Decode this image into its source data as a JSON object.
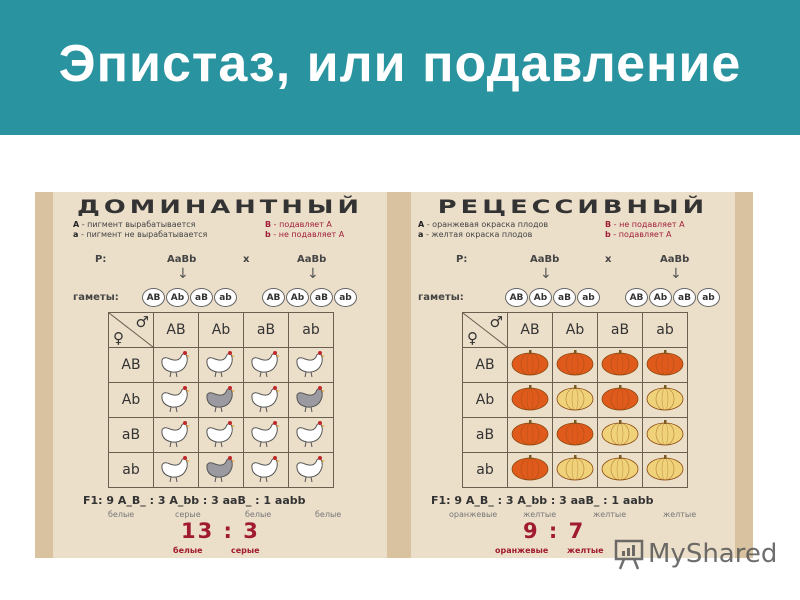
{
  "slide": {
    "title": "Эпистаз, или подавление"
  },
  "panels": [
    {
      "title": "ДОМИНАНТНЫЙ",
      "legend": [
        {
          "gene": "A",
          "text": " - пигмент вырабатывается"
        },
        {
          "gene": "a",
          "text": " - пигмент не вырабатывается"
        },
        {
          "gene": "B",
          "text": " - подавляет А"
        },
        {
          "gene": "b",
          "text": " - не подавляет А"
        }
      ],
      "p_label": "P:",
      "parent1": "AaBb",
      "cross": "x",
      "parent2": "AaBb",
      "gametes_label": "гаметы:",
      "gametes": [
        "AB",
        "Ab",
        "aB",
        "ab"
      ],
      "male": "♂",
      "female": "♀",
      "cells": [
        [
          "white",
          "white",
          "white",
          "white"
        ],
        [
          "white",
          "gray",
          "white",
          "gray"
        ],
        [
          "white",
          "white",
          "white",
          "white"
        ],
        [
          "white",
          "gray",
          "white",
          "white"
        ]
      ],
      "f1": "F1: 9 A_B_ :  3 A_bb :  3 aaB_ :  1 aabb",
      "f1_labels": [
        "белые",
        "серые",
        "белые",
        "белые"
      ],
      "ratio": "13 : 3",
      "ratio_labels": [
        "белые",
        "серые"
      ]
    },
    {
      "title": "РЕЦЕССИВНЫЙ",
      "legend": [
        {
          "gene": "A",
          "text": " - оранжевая окраска плодов"
        },
        {
          "gene": "a",
          "text": " - желтая окраска плодов"
        },
        {
          "gene": "B",
          "text": " - не подавляет А"
        },
        {
          "gene": "b",
          "text": " - подавляет А"
        }
      ],
      "p_label": "P:",
      "parent1": "AaBb",
      "cross": "x",
      "parent2": "AaBb",
      "gametes_label": "гаметы:",
      "gametes": [
        "AB",
        "Ab",
        "aB",
        "ab"
      ],
      "male": "♂",
      "female": "♀",
      "cells": [
        [
          "orange",
          "orange",
          "orange",
          "orange"
        ],
        [
          "orange",
          "yellow",
          "orange",
          "yellow"
        ],
        [
          "orange",
          "orange",
          "yellow",
          "yellow"
        ],
        [
          "orange",
          "yellow",
          "yellow",
          "yellow"
        ]
      ],
      "f1": "F1: 9 A_B_ :  3 A_bb :  3 aaB_ :  1 aabb",
      "f1_labels": [
        "оранжевые",
        "желтые",
        "желтые",
        "желтые"
      ],
      "ratio": "9 : 7",
      "ratio_labels": [
        "оранжевые",
        "желтые"
      ]
    }
  ],
  "colors": {
    "header": "#2a93a0",
    "white": "#ffffff",
    "gray": "#9a9aa0",
    "orange": "#e05a1c",
    "yellow": "#f0d27a",
    "ratio": "#a01a30"
  },
  "watermark": "MyShared"
}
